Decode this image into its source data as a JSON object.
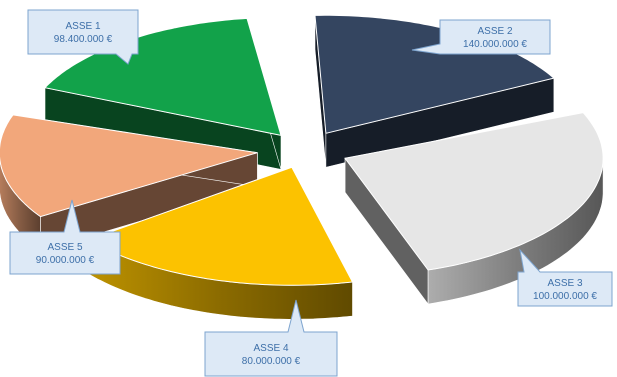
{
  "chart_data": {
    "type": "pie",
    "title": "",
    "categories": [
      "ASSE 1",
      "ASSE 2",
      "ASSE 3",
      "ASSE 4",
      "ASSE 5"
    ],
    "values": [
      98400000,
      140000000,
      100000000,
      80000000,
      90000000
    ],
    "value_labels": [
      "98.400.000 €",
      "140.000.000 €",
      "100.000.000 €",
      "80.000.000 €",
      "90.000.000 €"
    ],
    "colors": [
      "#344560",
      "#e6e6e6",
      "#fcc200",
      "#f2a77b",
      "#12a24a"
    ],
    "style": "3d-exploded",
    "legend": "none"
  }
}
